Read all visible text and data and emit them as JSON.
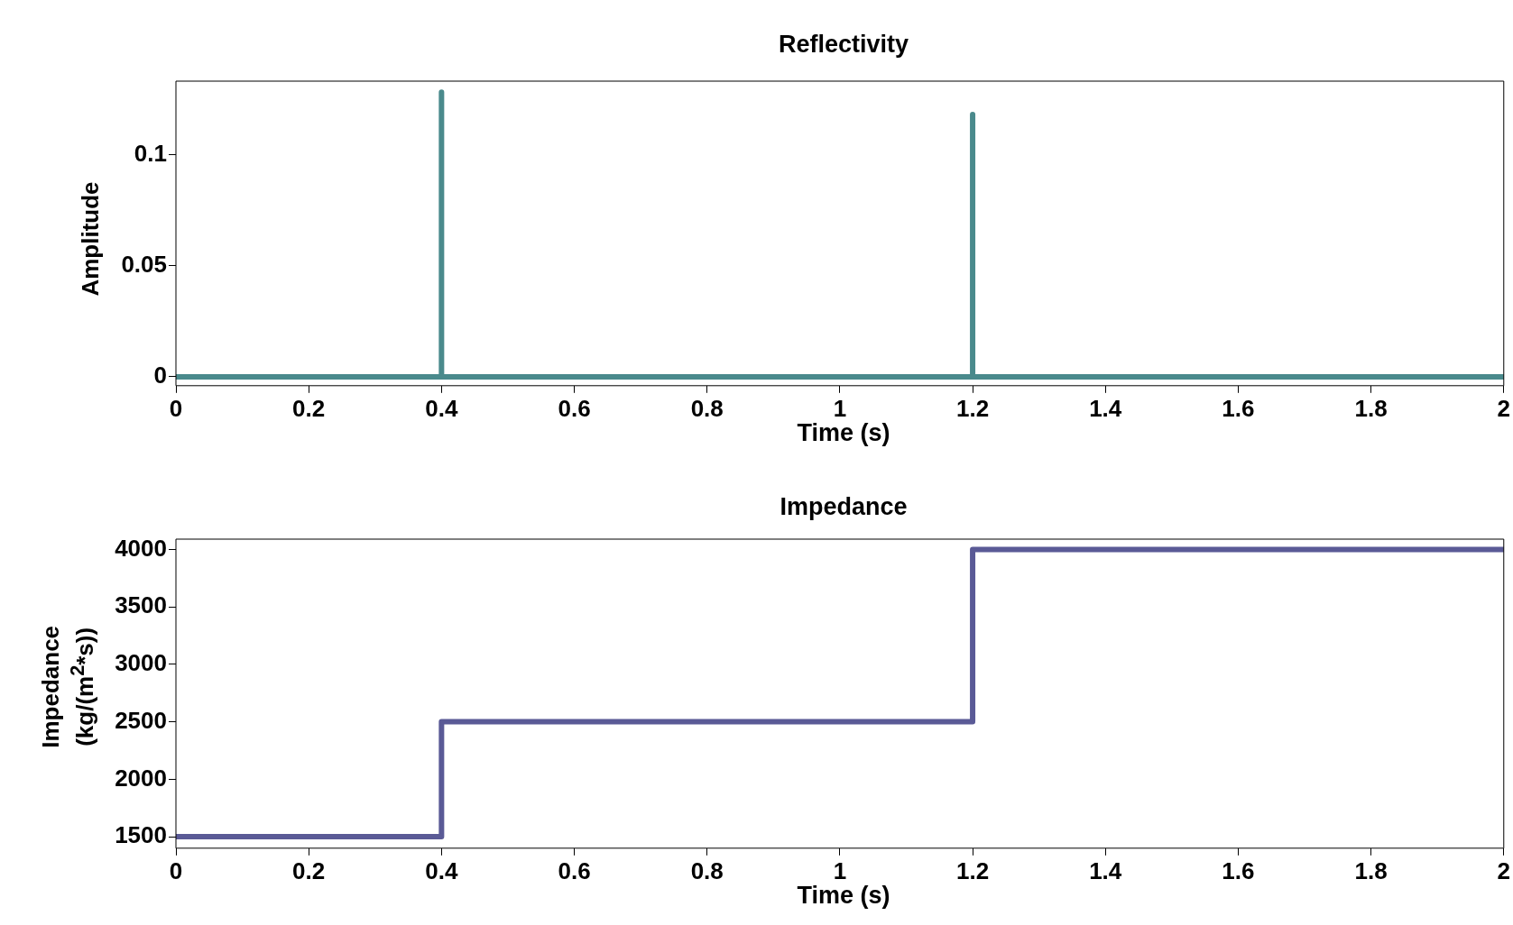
{
  "chart_data": [
    {
      "type": "line",
      "title": "Reflectivity",
      "xlabel": "Time (s)",
      "ylabel": "Amplitude",
      "xlim": [
        0,
        2
      ],
      "xticks": [
        0,
        0.2,
        0.4,
        0.6,
        0.8,
        1,
        1.2,
        1.4,
        1.6,
        1.8,
        2
      ],
      "ylim": [
        -0.004,
        0.133
      ],
      "yticks": [
        0,
        0.05,
        0.1
      ],
      "grid": false,
      "legend": false,
      "series": [
        {
          "color": "#4a8a8c",
          "x": [
            0,
            0.4,
            0.4,
            0.4,
            1.2,
            1.2,
            1.2,
            2
          ],
          "values": [
            0,
            0,
            0.128,
            0,
            0,
            0.118,
            0,
            0
          ]
        }
      ]
    },
    {
      "type": "step",
      "title": "Impedance",
      "xlabel": "Time (s)",
      "ylabel": "Impedance\n(kg/(m$^{2}$*s))",
      "xlim": [
        0,
        2
      ],
      "xticks": [
        0,
        0.2,
        0.4,
        0.6,
        0.8,
        1,
        1.2,
        1.4,
        1.6,
        1.8,
        2
      ],
      "ylim": [
        1400,
        4090
      ],
      "yticks": [
        1500,
        2000,
        2500,
        3000,
        3500,
        4000
      ],
      "grid": false,
      "legend": false,
      "series": [
        {
          "color": "#5a5a96",
          "x": [
            0,
            0.4,
            1.2,
            2
          ],
          "values": [
            1500,
            2500,
            4000,
            4000
          ]
        }
      ]
    }
  ]
}
